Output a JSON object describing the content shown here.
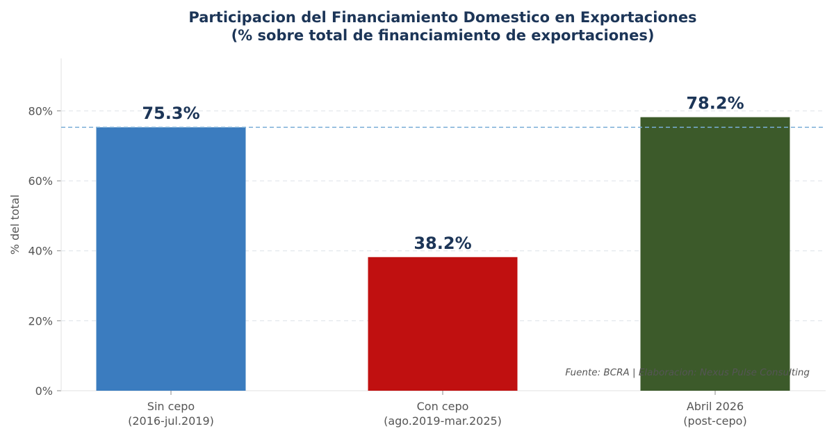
{
  "chart_data": {
    "type": "bar",
    "title": "Participacion del Financiamiento Domestico en Exportaciones",
    "subtitle": "(% sobre total de financiamiento de exportaciones)",
    "ylabel": "% del total",
    "xlabel": "",
    "ylim": [
      0,
      95
    ],
    "yticks": [
      0,
      20,
      40,
      60,
      80
    ],
    "ytick_labels": [
      "0%",
      "20%",
      "40%",
      "60%",
      "80%"
    ],
    "grid": "horizontal-dashed",
    "categories": [
      [
        "Sin cepo",
        "(2016-jul.2019)"
      ],
      [
        "Con cepo",
        "(ago.2019-mar.2025)"
      ],
      [
        "Abril 2026",
        "(post-cepo)"
      ]
    ],
    "values": [
      75.3,
      38.2,
      78.2
    ],
    "value_labels": [
      "75.3%",
      "38.2%",
      "78.2%"
    ],
    "colors": [
      "#3b7cbf",
      "#c01010",
      "#3c5a2a"
    ],
    "reference_line": {
      "value": 75.3,
      "style": "dashed",
      "color": "#7aaed6"
    },
    "source_note": "Fuente: BCRA | Elaboracion: Nexus Pulse Consulting"
  }
}
